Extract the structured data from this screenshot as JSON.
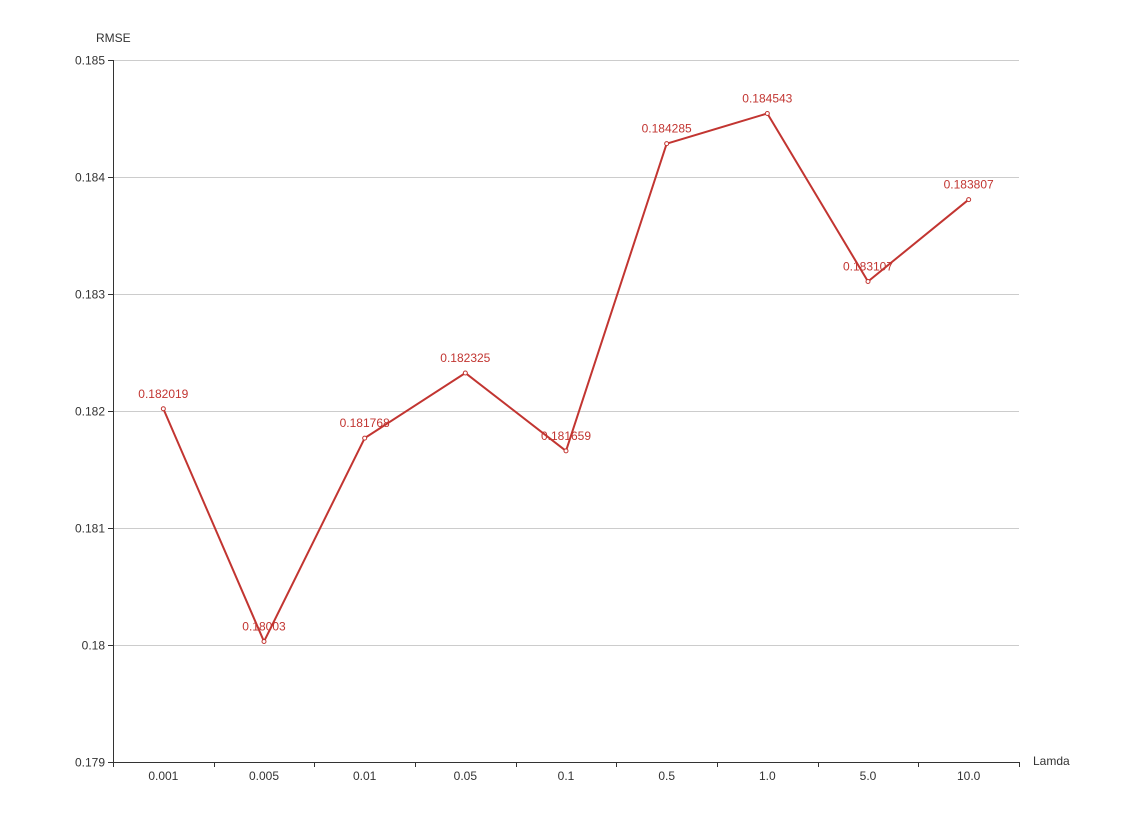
{
  "chart_data": {
    "type": "line",
    "title": "",
    "xlabel": "Lamda",
    "ylabel": "RMSE",
    "categories": [
      "0.001",
      "0.005",
      "0.01",
      "0.05",
      "0.1",
      "0.5",
      "1.0",
      "5.0",
      "10.0"
    ],
    "series": [
      {
        "values": [
          0.182019,
          0.18003,
          0.181768,
          0.182325,
          0.181659,
          0.184285,
          0.184543,
          0.183107,
          0.183807
        ],
        "color": "#c23531"
      }
    ],
    "ylim": [
      0.179,
      0.185
    ],
    "yticks": [
      0.179,
      0.18,
      0.181,
      0.182,
      0.183,
      0.184,
      0.185
    ],
    "ytick_labels": [
      "0.179",
      "0.18",
      "0.181",
      "0.182",
      "0.183",
      "0.184",
      "0.185"
    ],
    "grid": true,
    "legend": "none"
  }
}
